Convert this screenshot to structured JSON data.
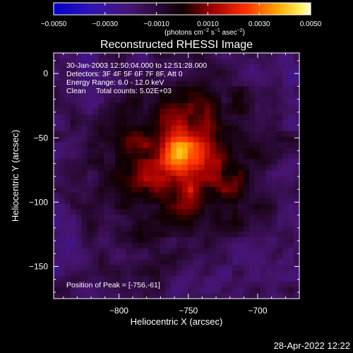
{
  "chart_data": {
    "type": "heatmap",
    "title": "Reconstructed RHESSI Image",
    "xlabel": "Heliocentric X (arcsec)",
    "ylabel": "Heliocentric Y (arcsec)",
    "xlim": [
      -847,
      -670
    ],
    "ylim": [
      -175,
      16
    ],
    "x_ticks": [
      -800,
      -750,
      -700
    ],
    "x_tick_labels": [
      "−800",
      "−750",
      "−700"
    ],
    "y_ticks": [
      0,
      -50,
      -100,
      -150
    ],
    "y_tick_labels": [
      "0",
      "−50",
      "−100",
      "−150"
    ],
    "colorbar": {
      "range": [
        -0.005,
        0.005
      ],
      "ticks": [
        -0.005,
        -0.003,
        -0.001,
        0.001,
        0.003,
        0.005
      ],
      "tick_labels": [
        "−0.0050",
        "−0.0030",
        "−0.0010",
        "0.0010",
        "0.0030",
        "0.0050"
      ],
      "unit_label": {
        "pre": "(photons cm",
        "e1": "−2",
        "mid1": " s",
        "e2": "−1",
        "mid2": " asec",
        "e3": "−2",
        "post": ")"
      },
      "colormap": "rhessi-blue-red-yellow-white"
    },
    "annotations": [
      "30-Jan-2003 12:50:04.000 to 12:51:28.000",
      "Detectors: 3F 4F 5F 6F 7F 8F, Att 0",
      "Energy Range: 6.0 - 12.0 keV",
      "Clean     Total counts: 5.02E+03"
    ],
    "peak_annotation": "Position of Peak = [-756,-61]",
    "peak": {
      "x": -756,
      "y": -61,
      "value": 0.005
    },
    "source": {
      "center": [
        -755,
        -70
      ],
      "sigma": [
        38,
        42
      ],
      "background": -0.0018,
      "amplitude": 0.0032
    }
  },
  "footer": {
    "timestamp": "28-Apr-2022 12:22"
  },
  "colors": {
    "background": "#000000",
    "foreground": "#ffffff"
  }
}
